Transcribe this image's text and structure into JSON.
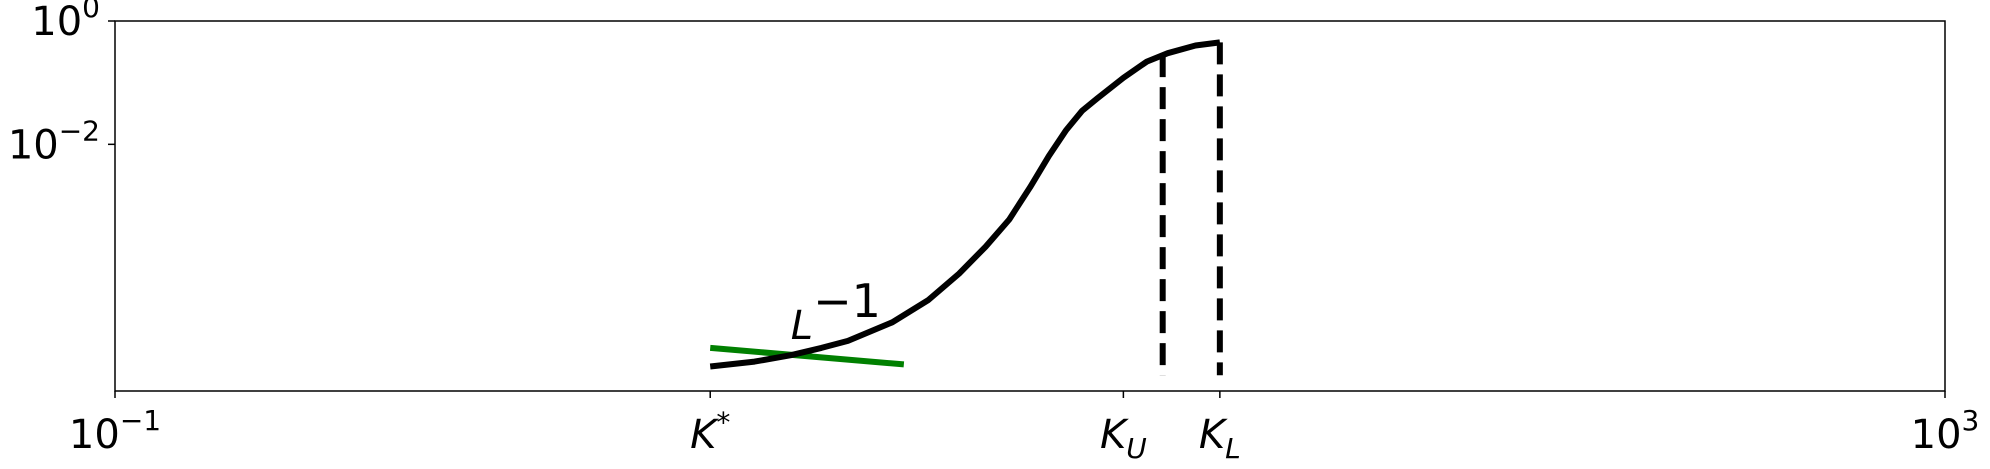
{
  "chart_data": {
    "type": "line",
    "title": "",
    "xlabel": "",
    "ylabel": "",
    "xscale": "log",
    "yscale": "log",
    "xlim": [
      0.1,
      1000
    ],
    "ylim": [
      1e-06,
      1
    ],
    "grid": false,
    "x_ticks": [
      {
        "x": 0.1,
        "base": "10",
        "exp": "−1"
      },
      {
        "x": 1000,
        "base": "10",
        "exp": "3"
      }
    ],
    "y_ticks": [
      {
        "y": 1,
        "base": "10",
        "exp": "0"
      },
      {
        "y": 0.01,
        "base": "10",
        "exp": "−2"
      }
    ],
    "named_ticks": [
      {
        "x": 2.0,
        "main": "K",
        "sup": "*",
        "sub": ""
      },
      {
        "x": 16.0,
        "main": "K",
        "sup": "",
        "sub": "U"
      },
      {
        "x": 26.0,
        "main": "K",
        "sub": "L",
        "sup": ""
      }
    ],
    "series": [
      {
        "color": "#000000",
        "x": [
          2.0,
          2.5,
          3.0,
          3.5,
          4.0,
          5.0,
          6.0,
          7.0,
          8.0,
          9.0,
          10.0,
          11.0,
          12.0,
          13.0,
          14.0,
          16.0,
          18.0,
          20.0,
          23.0,
          26.0
        ],
        "y": [
          2.5e-06,
          3e-06,
          3.8e-06,
          5e-06,
          6.5e-06,
          1.3e-05,
          3e-05,
          8e-05,
          0.00022,
          0.0006,
          0.002,
          0.0065,
          0.017,
          0.035,
          0.055,
          0.12,
          0.22,
          0.3,
          0.4,
          0.45
        ]
      }
    ],
    "reference_line": {
      "color": "#008000",
      "x": [
        2.0,
        5.3
      ],
      "y": [
        5e-06,
        2.7e-06
      ],
      "label_base": "L",
      "label_exp": "−1",
      "label_x": 3.0,
      "label_y": 7e-06
    },
    "vlines": [
      {
        "x": 19.5,
        "y_top": 0.28,
        "y_bottom": 1.8e-06,
        "style": "dashed",
        "color": "#000000"
      },
      {
        "x": 26.0,
        "y_top": 0.45,
        "y_bottom": 1.8e-06,
        "style": "dashed",
        "color": "#000000"
      }
    ]
  }
}
